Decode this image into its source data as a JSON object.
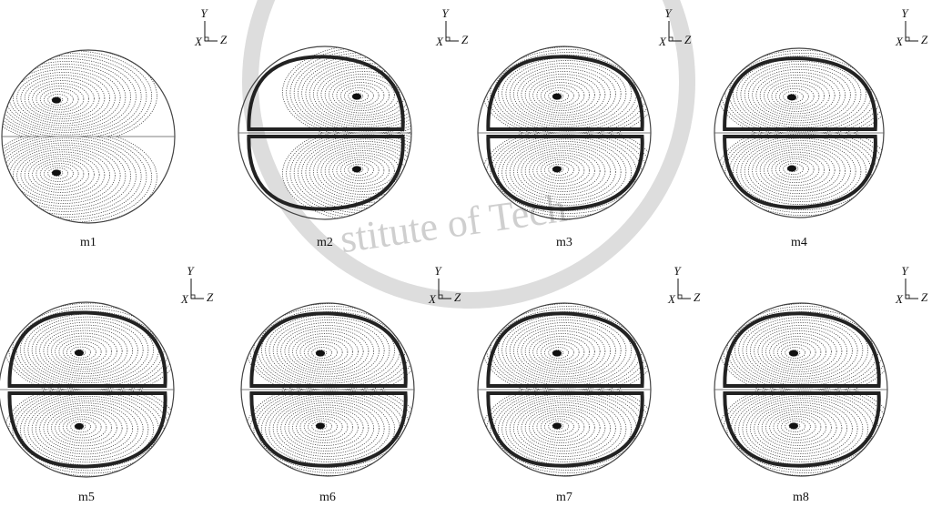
{
  "panels": [
    {
      "label": "m1"
    },
    {
      "label": "m2"
    },
    {
      "label": "m3"
    },
    {
      "label": "m4"
    },
    {
      "label": "m5"
    },
    {
      "label": "m6"
    },
    {
      "label": "m7"
    },
    {
      "label": "m8"
    }
  ],
  "axes": [
    {
      "y": "Y",
      "x": "X",
      "z": "Z"
    },
    {
      "y": "Y",
      "x": "X",
      "z": "Z"
    },
    {
      "y": "Y",
      "x": "X",
      "z": "Z"
    },
    {
      "y": "Y",
      "x": "X",
      "z": "Z"
    },
    {
      "y": "Y",
      "x": "X",
      "z": "Z"
    },
    {
      "y": "Y",
      "x": "X",
      "z": "Z"
    },
    {
      "y": "Y",
      "x": "X",
      "z": "Z"
    },
    {
      "y": "Y",
      "x": "X",
      "z": "Z"
    }
  ],
  "watermark": "stitute of Tech"
}
